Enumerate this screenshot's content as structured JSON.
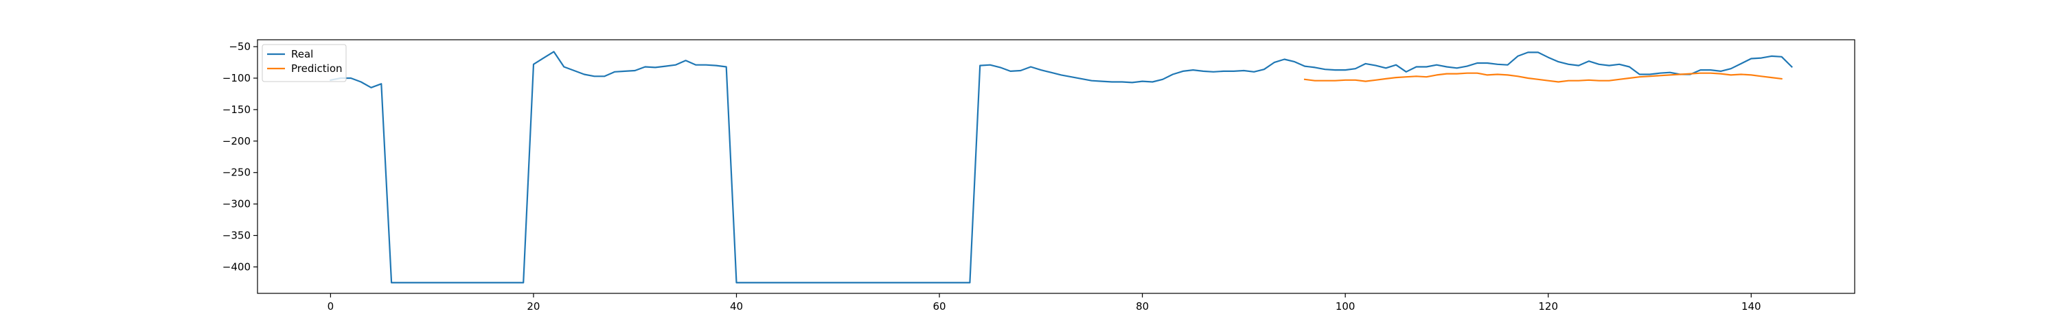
{
  "chart_data": {
    "type": "line",
    "title": "",
    "xlabel": "",
    "ylabel": "",
    "xlim": [
      -7.2,
      150.2
    ],
    "ylim": [
      -442,
      -39
    ],
    "xticks": [
      0,
      20,
      40,
      60,
      80,
      100,
      120,
      140
    ],
    "yticks": [
      -50,
      -100,
      -150,
      -200,
      -250,
      -300,
      -350,
      -400
    ],
    "grid": false,
    "legend_position": "top-left",
    "series": [
      {
        "name": "Real",
        "color": "#1f77b4",
        "x_start": 0,
        "values": [
          -103,
          -100,
          -100,
          -106,
          -115,
          -109,
          -425,
          -425,
          -425,
          -425,
          -425,
          -425,
          -425,
          -425,
          -425,
          -425,
          -425,
          -425,
          -425,
          -425,
          -78,
          -68,
          -58,
          -82,
          -88,
          -94,
          -97,
          -97,
          -90,
          -89,
          -88,
          -82,
          -83,
          -81,
          -79,
          -72,
          -79,
          -79,
          -80,
          -82,
          -425,
          -425,
          -425,
          -425,
          -425,
          -425,
          -425,
          -425,
          -425,
          -425,
          -425,
          -425,
          -425,
          -425,
          -425,
          -425,
          -425,
          -425,
          -425,
          -425,
          -425,
          -425,
          -425,
          -425,
          -80,
          -79,
          -83,
          -89,
          -88,
          -82,
          -87,
          -91,
          -95,
          -98,
          -101,
          -104,
          -105,
          -106,
          -106,
          -107,
          -105,
          -106,
          -102,
          -94,
          -89,
          -87,
          -89,
          -90,
          -89,
          -89,
          -88,
          -90,
          -86,
          -75,
          -70,
          -74,
          -81,
          -83,
          -86,
          -87,
          -87,
          -85,
          -77,
          -80,
          -84,
          -79,
          -90,
          -82,
          -82,
          -79,
          -82,
          -84,
          -81,
          -76,
          -76,
          -78,
          -79,
          -65,
          -59,
          -59,
          -67,
          -74,
          -78,
          -80,
          -73,
          -78,
          -80,
          -78,
          -82,
          -94,
          -94,
          -92,
          -91,
          -94,
          -94,
          -87,
          -87,
          -89,
          -85,
          -77,
          -69,
          -68,
          -65,
          -66,
          -82
        ]
      },
      {
        "name": "Prediction",
        "color": "#ff7f0e",
        "x_start": 96,
        "values": [
          -102,
          -104,
          -104,
          -104,
          -103,
          -103,
          -105,
          -103,
          -101,
          -99,
          -98,
          -97,
          -98,
          -95,
          -93,
          -93,
          -92,
          -92,
          -95,
          -94,
          -95,
          -97,
          -100,
          -102,
          -104,
          -106,
          -104,
          -104,
          -103,
          -104,
          -104,
          -102,
          -100,
          -98,
          -97,
          -96,
          -95,
          -94,
          -93,
          -92,
          -92,
          -93,
          -95,
          -94,
          -95,
          -97,
          -99,
          -101
        ]
      }
    ]
  }
}
